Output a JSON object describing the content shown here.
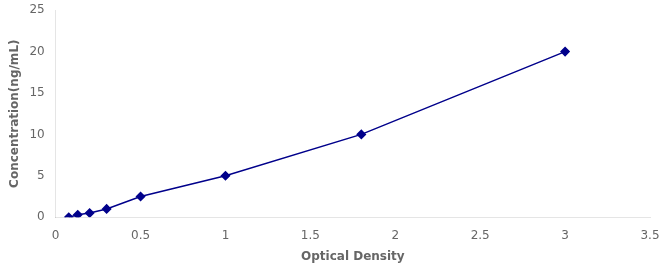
{
  "chart_data": {
    "type": "line",
    "x": [
      0.077,
      0.13,
      0.2,
      0.3,
      0.5,
      1.0,
      1.8,
      3.0
    ],
    "values": [
      0.0,
      0.3,
      0.5,
      1.0,
      2.5,
      5.0,
      10.0,
      20.0
    ],
    "color": "#00008B",
    "marker": "diamond",
    "xlabel": "Optical Density",
    "ylabel": "Concentration(ng/mL)",
    "xlim": [
      0,
      3.5
    ],
    "ylim": [
      0,
      25
    ],
    "xticks": [
      0,
      0.5,
      1,
      1.5,
      2,
      2.5,
      3,
      3.5
    ],
    "yticks": [
      0,
      5,
      10,
      15,
      20,
      25
    ],
    "grid": false
  }
}
